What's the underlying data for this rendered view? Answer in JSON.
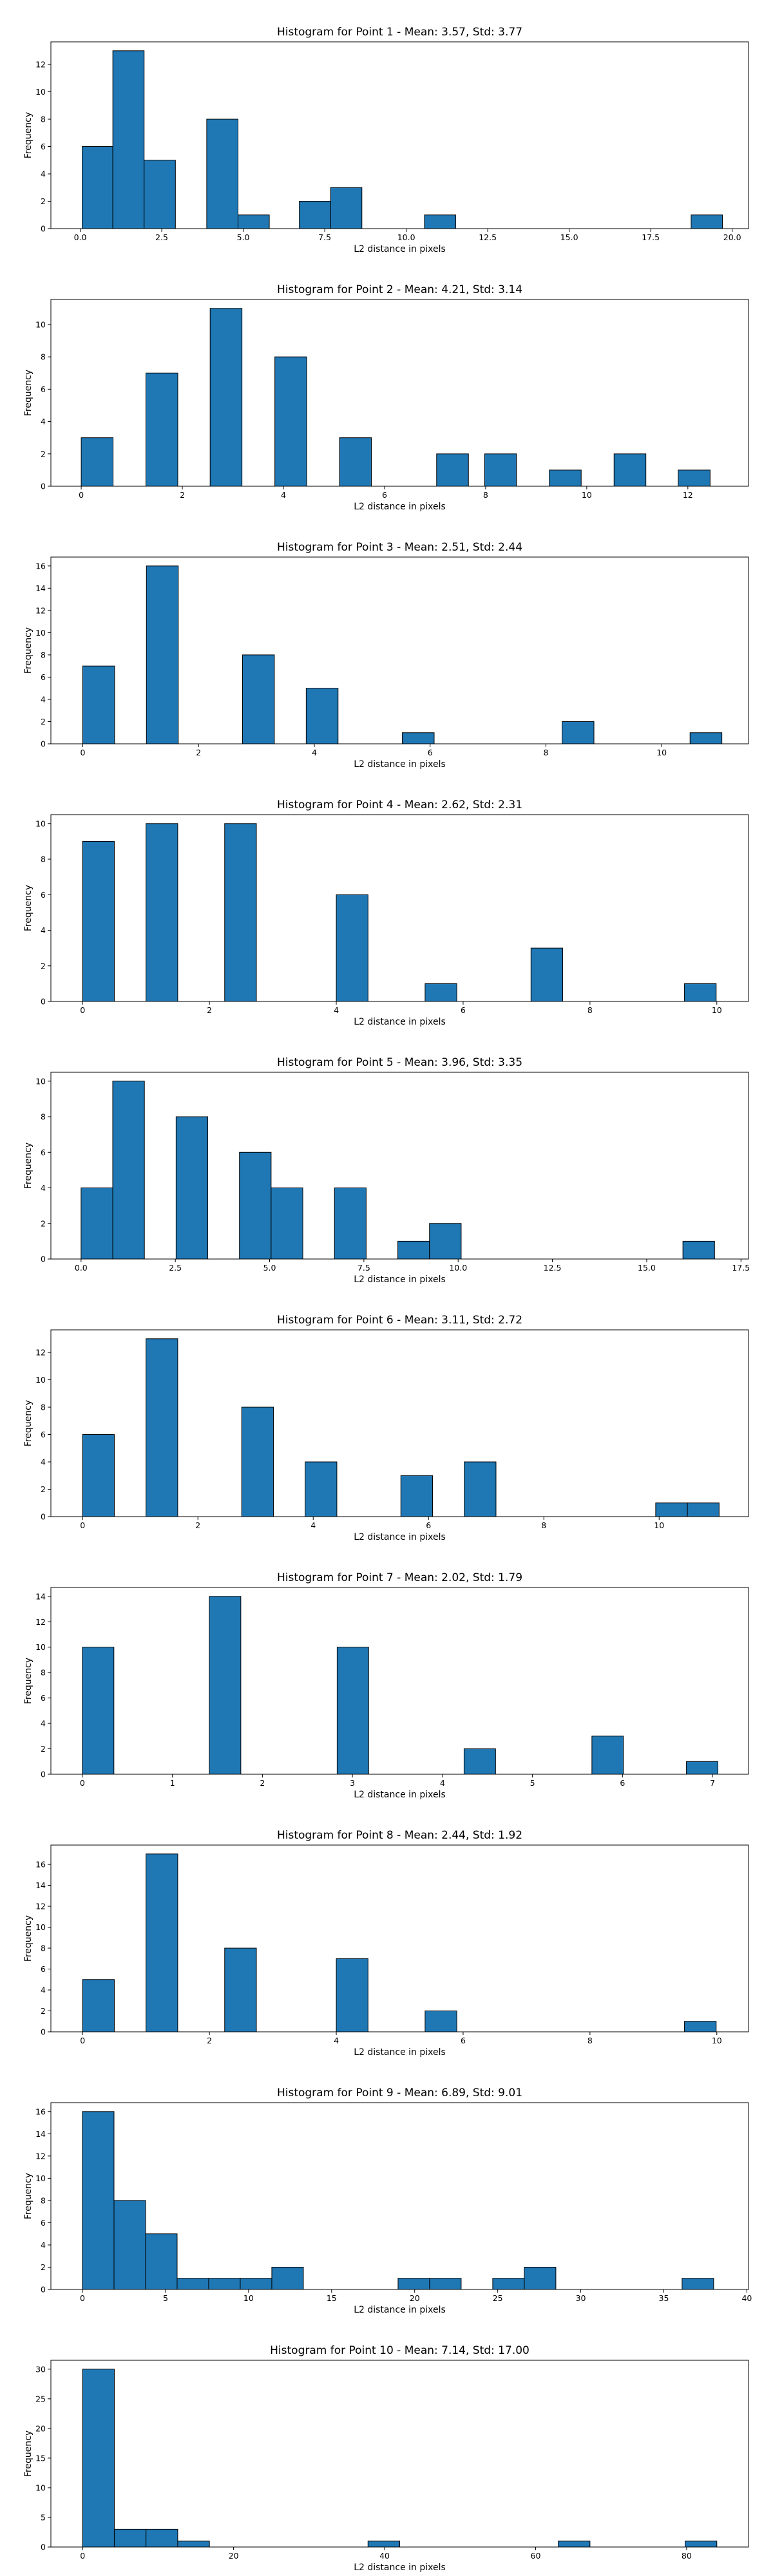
{
  "style": {
    "bar_color": "#1f77b4",
    "edge_color": "#000000"
  },
  "chart_data": [
    {
      "type": "bar",
      "title": "Histogram for Point 1 - Mean: 3.57, Std: 3.77",
      "xlabel": "L2 distance in pixels",
      "ylabel": "Frequency",
      "xlim": [
        -0.9,
        20.5
      ],
      "ylim": [
        0,
        13.65
      ],
      "xticks": [
        0.0,
        2.5,
        5.0,
        7.5,
        10.0,
        12.5,
        15.0,
        17.5,
        20.0
      ],
      "xtick_labels": [
        "0.0",
        "2.5",
        "5.0",
        "7.5",
        "10.0",
        "12.5",
        "15.0",
        "17.5",
        "20.0"
      ],
      "yticks": [
        0,
        2,
        4,
        6,
        8,
        10,
        12
      ],
      "bins": [
        [
          0.06,
          1.0,
          6
        ],
        [
          1.0,
          1.96,
          13
        ],
        [
          1.96,
          2.92,
          5
        ],
        [
          3.88,
          4.84,
          8
        ],
        [
          4.84,
          5.8,
          1
        ],
        [
          6.72,
          7.68,
          2
        ],
        [
          7.68,
          8.64,
          3
        ],
        [
          10.56,
          11.52,
          1
        ],
        [
          18.74,
          19.7,
          1
        ]
      ]
    },
    {
      "type": "bar",
      "title": "Histogram for Point 2 - Mean: 4.21, Std: 3.14",
      "xlabel": "L2 distance in pixels",
      "ylabel": "Frequency",
      "xlim": [
        -0.6,
        13.2
      ],
      "ylim": [
        0,
        11.55
      ],
      "xticks": [
        0,
        2,
        4,
        6,
        8,
        10,
        12
      ],
      "xtick_labels": [
        "0",
        "2",
        "4",
        "6",
        "8",
        "10",
        "12"
      ],
      "yticks": [
        0,
        2,
        4,
        6,
        8,
        10
      ],
      "bins": [
        [
          0.0,
          0.63,
          3
        ],
        [
          1.28,
          1.91,
          7
        ],
        [
          2.55,
          3.18,
          11
        ],
        [
          3.83,
          4.46,
          8
        ],
        [
          5.11,
          5.74,
          3
        ],
        [
          7.03,
          7.66,
          2
        ],
        [
          7.98,
          8.61,
          2
        ],
        [
          9.26,
          9.89,
          1
        ],
        [
          10.54,
          11.17,
          2
        ],
        [
          11.81,
          12.44,
          1
        ]
      ]
    },
    {
      "type": "bar",
      "title": "Histogram for Point 3 - Mean: 2.51, Std: 2.44",
      "xlabel": "L2 distance in pixels",
      "ylabel": "Frequency",
      "xlim": [
        -0.55,
        11.5
      ],
      "ylim": [
        0,
        16.8
      ],
      "xticks": [
        0,
        2,
        4,
        6,
        8,
        10
      ],
      "xtick_labels": [
        "0",
        "2",
        "4",
        "6",
        "8",
        "10"
      ],
      "yticks": [
        0,
        2,
        4,
        6,
        8,
        10,
        12,
        14,
        16
      ],
      "bins": [
        [
          0.0,
          0.55,
          7
        ],
        [
          1.1,
          1.65,
          16
        ],
        [
          2.76,
          3.31,
          8
        ],
        [
          3.86,
          4.41,
          5
        ],
        [
          5.52,
          6.07,
          1
        ],
        [
          8.28,
          8.83,
          2
        ],
        [
          10.49,
          11.04,
          1
        ]
      ]
    },
    {
      "type": "bar",
      "title": "Histogram for Point 4 - Mean: 2.62, Std: 2.31",
      "xlabel": "L2 distance in pixels",
      "ylabel": "Frequency",
      "xlim": [
        -0.5,
        10.5
      ],
      "ylim": [
        0,
        10.5
      ],
      "xticks": [
        0,
        2,
        4,
        6,
        8,
        10
      ],
      "xtick_labels": [
        "0",
        "2",
        "4",
        "6",
        "8",
        "10"
      ],
      "yticks": [
        0,
        2,
        4,
        6,
        8,
        10
      ],
      "bins": [
        [
          0.0,
          0.5,
          9
        ],
        [
          1.0,
          1.5,
          10
        ],
        [
          2.24,
          2.74,
          10
        ],
        [
          4.0,
          4.5,
          6
        ],
        [
          5.4,
          5.9,
          1
        ],
        [
          7.07,
          7.57,
          3
        ],
        [
          9.49,
          9.99,
          1
        ]
      ]
    },
    {
      "type": "bar",
      "title": "Histogram for Point 5 - Mean: 3.96, Std: 3.35",
      "xlabel": "L2 distance in pixels",
      "ylabel": "Frequency",
      "xlim": [
        -0.8,
        17.7
      ],
      "ylim": [
        0,
        10.5
      ],
      "xticks": [
        0.0,
        2.5,
        5.0,
        7.5,
        10.0,
        12.5,
        15.0,
        17.5
      ],
      "xtick_labels": [
        "0.0",
        "2.5",
        "5.0",
        "7.5",
        "10.0",
        "12.5",
        "15.0",
        "17.5"
      ],
      "yticks": [
        0,
        2,
        4,
        6,
        8,
        10
      ],
      "bins": [
        [
          0.0,
          0.84,
          4
        ],
        [
          0.84,
          1.68,
          10
        ],
        [
          2.52,
          3.36,
          8
        ],
        [
          4.2,
          5.04,
          6
        ],
        [
          5.04,
          5.88,
          4
        ],
        [
          6.72,
          7.56,
          4
        ],
        [
          8.4,
          9.24,
          1
        ],
        [
          9.24,
          10.08,
          2
        ],
        [
          15.96,
          16.8,
          1
        ]
      ]
    },
    {
      "type": "bar",
      "title": "Histogram for Point 6 - Mean: 3.11, Std: 2.72",
      "xlabel": "L2 distance in pixels",
      "ylabel": "Frequency",
      "xlim": [
        -0.55,
        11.55
      ],
      "ylim": [
        0,
        13.65
      ],
      "xticks": [
        0,
        2,
        4,
        6,
        8,
        10
      ],
      "xtick_labels": [
        "0",
        "2",
        "4",
        "6",
        "8",
        "10"
      ],
      "yticks": [
        0,
        2,
        4,
        6,
        8,
        10,
        12
      ],
      "bins": [
        [
          0.0,
          0.55,
          6
        ],
        [
          1.1,
          1.65,
          13
        ],
        [
          2.76,
          3.31,
          8
        ],
        [
          3.86,
          4.41,
          4
        ],
        [
          5.52,
          6.07,
          3
        ],
        [
          6.62,
          7.17,
          4
        ],
        [
          9.94,
          10.49,
          1
        ],
        [
          10.49,
          11.04,
          1
        ]
      ]
    },
    {
      "type": "bar",
      "title": "Histogram for Point 7 - Mean: 2.02, Std: 1.79",
      "xlabel": "L2 distance in pixels",
      "ylabel": "Frequency",
      "xlim": [
        -0.35,
        7.4
      ],
      "ylim": [
        0,
        14.7
      ],
      "xticks": [
        0,
        1,
        2,
        3,
        4,
        5,
        6,
        7
      ],
      "xtick_labels": [
        "0",
        "1",
        "2",
        "3",
        "4",
        "5",
        "6",
        "7"
      ],
      "yticks": [
        0,
        2,
        4,
        6,
        8,
        10,
        12,
        14
      ],
      "bins": [
        [
          0.0,
          0.35,
          10
        ],
        [
          1.41,
          1.76,
          14
        ],
        [
          2.83,
          3.18,
          10
        ],
        [
          4.24,
          4.59,
          2
        ],
        [
          5.66,
          6.01,
          3
        ],
        [
          6.71,
          7.06,
          1
        ]
      ]
    },
    {
      "type": "bar",
      "title": "Histogram for Point 8 - Mean: 2.44, Std: 1.92",
      "xlabel": "L2 distance in pixels",
      "ylabel": "Frequency",
      "xlim": [
        -0.5,
        10.5
      ],
      "ylim": [
        0,
        17.85
      ],
      "xticks": [
        0,
        2,
        4,
        6,
        8,
        10
      ],
      "xtick_labels": [
        "0",
        "2",
        "4",
        "6",
        "8",
        "10"
      ],
      "yticks": [
        0,
        2,
        4,
        6,
        8,
        10,
        12,
        14,
        16
      ],
      "bins": [
        [
          0.0,
          0.5,
          5
        ],
        [
          1.0,
          1.5,
          17
        ],
        [
          2.24,
          2.74,
          8
        ],
        [
          4.0,
          4.5,
          7
        ],
        [
          5.4,
          5.9,
          2
        ],
        [
          9.49,
          9.99,
          1
        ]
      ]
    },
    {
      "type": "bar",
      "title": "Histogram for Point 9 - Mean: 6.89, Std: 9.01",
      "xlabel": "L2 distance in pixels",
      "ylabel": "Frequency",
      "xlim": [
        -1.9,
        40.1
      ],
      "ylim": [
        0,
        16.8
      ],
      "xticks": [
        0,
        5,
        10,
        15,
        20,
        25,
        30,
        35,
        40
      ],
      "xtick_labels": [
        "0",
        "5",
        "10",
        "15",
        "20",
        "25",
        "30",
        "35",
        "40"
      ],
      "yticks": [
        0,
        2,
        4,
        6,
        8,
        10,
        12,
        14,
        16
      ],
      "bins": [
        [
          0.0,
          1.9,
          16
        ],
        [
          1.9,
          3.8,
          8
        ],
        [
          3.8,
          5.7,
          5
        ],
        [
          5.7,
          7.6,
          1
        ],
        [
          7.6,
          9.5,
          1
        ],
        [
          9.5,
          11.4,
          1
        ],
        [
          11.4,
          13.3,
          2
        ],
        [
          19.0,
          20.9,
          1
        ],
        [
          20.9,
          22.8,
          1
        ],
        [
          24.7,
          26.6,
          1
        ],
        [
          26.6,
          28.5,
          2
        ],
        [
          36.1,
          38.0,
          1
        ]
      ]
    },
    {
      "type": "bar",
      "title": "Histogram for Point 10 - Mean: 7.14, Std: 17.00",
      "xlabel": "L2 distance in pixels",
      "ylabel": "Frequency",
      "xlim": [
        -4.2,
        88.2
      ],
      "ylim": [
        0,
        31.5
      ],
      "xticks": [
        0,
        20,
        40,
        60,
        80
      ],
      "xtick_labels": [
        "0",
        "20",
        "40",
        "60",
        "80"
      ],
      "yticks": [
        0,
        5,
        10,
        15,
        20,
        25,
        30
      ],
      "bins": [
        [
          0.0,
          4.2,
          30
        ],
        [
          4.2,
          8.4,
          3
        ],
        [
          8.4,
          12.6,
          3
        ],
        [
          12.6,
          16.8,
          1
        ],
        [
          37.8,
          42.0,
          1
        ],
        [
          63.0,
          67.2,
          1
        ],
        [
          79.8,
          84.0,
          1
        ]
      ]
    }
  ]
}
